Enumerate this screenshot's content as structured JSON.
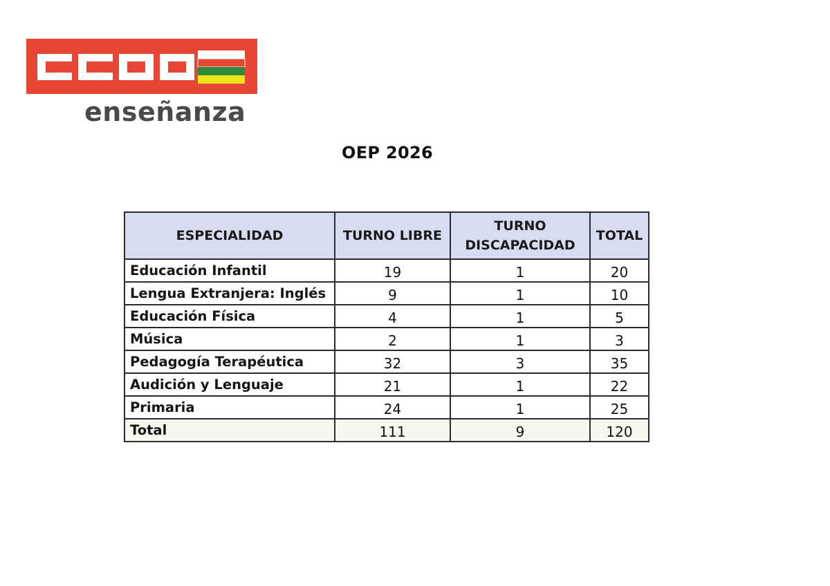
{
  "logo": {
    "text": "CCOO",
    "subtitle": "enseñanza",
    "colors": {
      "brand_red": "#e64633",
      "flag_white": "#ffffff",
      "flag_red": "#e64633",
      "flag_green": "#2e8b3a",
      "flag_yellow": "#f2e21b"
    }
  },
  "title": "OEP 2026",
  "table": {
    "headers": [
      "ESPECIALIDAD",
      "TURNO LIBRE",
      "TURNO DISCAPACIDAD",
      "TOTAL"
    ],
    "header_lines": {
      "turno_discapacidad_1": "TURNO",
      "turno_discapacidad_2": "DISCAPACIDAD"
    },
    "header_bg": "#d7dcf0",
    "rows": [
      {
        "especialidad": "Educación Infantil",
        "turno_libre": "19",
        "turno_discapacidad": "1",
        "total": "20"
      },
      {
        "especialidad": "Lengua Extranjera: Inglés",
        "turno_libre": "9",
        "turno_discapacidad": "1",
        "total": "10"
      },
      {
        "especialidad": "Educación Física",
        "turno_libre": "4",
        "turno_discapacidad": "1",
        "total": "5"
      },
      {
        "especialidad": "Música",
        "turno_libre": "2",
        "turno_discapacidad": "1",
        "total": "3"
      },
      {
        "especialidad": "Pedagogía Terapéutica",
        "turno_libre": "32",
        "turno_discapacidad": "3",
        "total": "35"
      },
      {
        "especialidad": "Audición y Lenguaje",
        "turno_libre": "21",
        "turno_discapacidad": "1",
        "total": "22"
      },
      {
        "especialidad": "Primaria",
        "turno_libre": "24",
        "turno_discapacidad": "1",
        "total": "25"
      }
    ],
    "total_row": {
      "especialidad": "Total",
      "turno_libre": "111",
      "turno_discapacidad": "9",
      "total": "120"
    }
  }
}
